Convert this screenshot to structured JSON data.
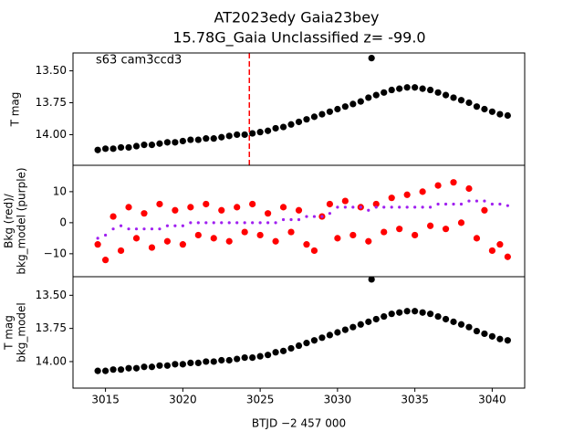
{
  "chart_data": [
    {
      "type": "scatter",
      "title": "AT2023edy  Gaia23bey",
      "subtitle": "15.78G_Gaia Unclassified z= -99.0",
      "annotation": "s63 cam3ccd3",
      "ylabel": [
        "T mag"
      ],
      "xlim": [
        3012.9,
        3042.1
      ],
      "ylim": [
        13.36,
        14.24
      ],
      "invert_y": true,
      "yticks": [
        {
          "value": 13.5,
          "label": "13.50"
        },
        {
          "value": 13.75,
          "label": "13.75"
        },
        {
          "value": 14.0,
          "label": "14.00"
        }
      ],
      "vline": {
        "x": 3024.3,
        "color": "#ff0000"
      },
      "x": [
        3014.5,
        3015,
        3015.5,
        3016,
        3016.5,
        3017,
        3017.5,
        3018,
        3018.5,
        3019,
        3019.5,
        3020,
        3020.5,
        3021,
        3021.5,
        3022,
        3022.5,
        3023,
        3023.5,
        3024,
        3024.5,
        3025,
        3025.5,
        3026,
        3026.5,
        3027,
        3027.5,
        3028,
        3028.5,
        3029,
        3029.5,
        3030,
        3030.5,
        3031,
        3031.5,
        3032,
        3032.2,
        3032.5,
        3033,
        3033.5,
        3034,
        3034.5,
        3035,
        3035.5,
        3036,
        3036.5,
        3037,
        3037.5,
        3038,
        3038.5,
        3039,
        3039.5,
        3040,
        3040.5,
        3041
      ],
      "series": [
        {
          "color": "#000000",
          "values": [
            14.12,
            14.11,
            14.11,
            14.1,
            14.1,
            14.09,
            14.08,
            14.08,
            14.07,
            14.06,
            14.06,
            14.05,
            14.04,
            14.04,
            14.03,
            14.03,
            14.02,
            14.01,
            14.0,
            14.0,
            13.99,
            13.98,
            13.97,
            13.95,
            13.94,
            13.92,
            13.9,
            13.88,
            13.86,
            13.84,
            13.82,
            13.8,
            13.78,
            13.76,
            13.74,
            13.71,
            13.4,
            13.69,
            13.67,
            13.65,
            13.64,
            13.63,
            13.63,
            13.64,
            13.65,
            13.67,
            13.69,
            13.71,
            13.73,
            13.75,
            13.78,
            13.8,
            13.82,
            13.84,
            13.85
          ]
        }
      ]
    },
    {
      "type": "scatter",
      "ylabel": [
        "Bkg (red)/",
        "bkg_model (purple)"
      ],
      "xlim": [
        3012.9,
        3042.1
      ],
      "ylim": [
        -17.4,
        18.5
      ],
      "yticks": [
        {
          "value": -10,
          "label": "−10"
        },
        0,
        10
      ],
      "x": [
        3014.5,
        3015,
        3015.5,
        3016,
        3016.5,
        3017,
        3017.5,
        3018,
        3018.5,
        3019,
        3019.5,
        3020,
        3020.5,
        3021,
        3021.5,
        3022,
        3022.5,
        3023,
        3023.5,
        3024,
        3024.5,
        3025,
        3025.5,
        3026,
        3026.5,
        3027,
        3027.5,
        3028,
        3028.5,
        3029,
        3029.5,
        3030,
        3030.5,
        3031,
        3031.5,
        3032,
        3032.5,
        3033,
        3033.5,
        3034,
        3034.5,
        3035,
        3035.5,
        3036,
        3036.5,
        3037,
        3037.5,
        3038,
        3038.5,
        3039,
        3039.5,
        3040,
        3040.5,
        3041
      ],
      "series": [
        {
          "color": "#ff0000",
          "values": [
            -7,
            -12,
            2,
            -9,
            5,
            -5,
            3,
            -8,
            6,
            -6,
            4,
            -7,
            5,
            -4,
            6,
            -5,
            4,
            -6,
            5,
            -3,
            6,
            -4,
            3,
            -6,
            5,
            -3,
            4,
            -7,
            -9,
            2,
            6,
            -5,
            7,
            -4,
            5,
            -6,
            6,
            -3,
            8,
            -2,
            9,
            -4,
            10,
            -1,
            12,
            -2,
            13,
            0,
            11,
            -5,
            4,
            -9,
            -7,
            -11
          ]
        },
        {
          "color": "#a020f0",
          "values": [
            -5,
            -4,
            -2,
            -1,
            -2,
            -2,
            -2,
            -2,
            -2,
            -1,
            -1,
            -1,
            0,
            0,
            0,
            0,
            0,
            0,
            0,
            0,
            0,
            0,
            0,
            0,
            1,
            1,
            1,
            2,
            2,
            2,
            3,
            5,
            5,
            5,
            5,
            4,
            5,
            5,
            5,
            5,
            5,
            5,
            5,
            5,
            6,
            6,
            6,
            6,
            7,
            7,
            7,
            6,
            6,
            5.5
          ]
        }
      ]
    },
    {
      "type": "scatter",
      "ylabel": [
        "T mag",
        "bkg_model"
      ],
      "xlabel": "BTJD −2 457 000",
      "xlim": [
        3012.9,
        3042.1
      ],
      "xticks": [
        3015,
        3020,
        3025,
        3030,
        3035,
        3040
      ],
      "ylim": [
        13.36,
        14.2
      ],
      "invert_y": true,
      "yticks": [
        {
          "value": 13.5,
          "label": "13.50"
        },
        {
          "value": 13.75,
          "label": "13.75"
        },
        {
          "value": 14.0,
          "label": "14.00"
        }
      ],
      "x": [
        3014.5,
        3015,
        3015.5,
        3016,
        3016.5,
        3017,
        3017.5,
        3018,
        3018.5,
        3019,
        3019.5,
        3020,
        3020.5,
        3021,
        3021.5,
        3022,
        3022.5,
        3023,
        3023.5,
        3024,
        3024.5,
        3025,
        3025.5,
        3026,
        3026.5,
        3027,
        3027.5,
        3028,
        3028.5,
        3029,
        3029.5,
        3030,
        3030.5,
        3031,
        3031.5,
        3032,
        3032.2,
        3032.5,
        3033,
        3033.5,
        3034,
        3034.5,
        3035,
        3035.5,
        3036,
        3036.5,
        3037,
        3037.5,
        3038,
        3038.5,
        3039,
        3039.5,
        3040,
        3040.5,
        3041
      ],
      "series": [
        {
          "color": "#000000",
          "values": [
            14.07,
            14.07,
            14.06,
            14.06,
            14.05,
            14.05,
            14.04,
            14.04,
            14.03,
            14.03,
            14.02,
            14.02,
            14.01,
            14.01,
            14.0,
            14.0,
            13.99,
            13.99,
            13.98,
            13.97,
            13.97,
            13.96,
            13.95,
            13.93,
            13.92,
            13.9,
            13.88,
            13.86,
            13.84,
            13.82,
            13.8,
            13.78,
            13.76,
            13.74,
            13.72,
            13.7,
            13.38,
            13.68,
            13.66,
            13.64,
            13.63,
            13.62,
            13.62,
            13.63,
            13.64,
            13.66,
            13.68,
            13.7,
            13.72,
            13.74,
            13.77,
            13.79,
            13.81,
            13.83,
            13.84
          ]
        }
      ]
    }
  ]
}
